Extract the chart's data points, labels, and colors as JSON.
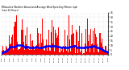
{
  "title_line1": "Milwaukee Weather Actual and Average Wind Speed by Minute mph",
  "title_line2": "(Last 24 Hours)",
  "bar_color": "#FF0000",
  "avg_color": "#0000FF",
  "background_color": "#FFFFFF",
  "plot_bg_color": "#FFFFFF",
  "ylim": [
    0,
    45
  ],
  "yticks": [
    0,
    5,
    10,
    15,
    20,
    25,
    30,
    35,
    40,
    45
  ],
  "n_bars": 144,
  "seed": 42,
  "grid_color": "#CCCCCC",
  "spine_color": "#000000"
}
